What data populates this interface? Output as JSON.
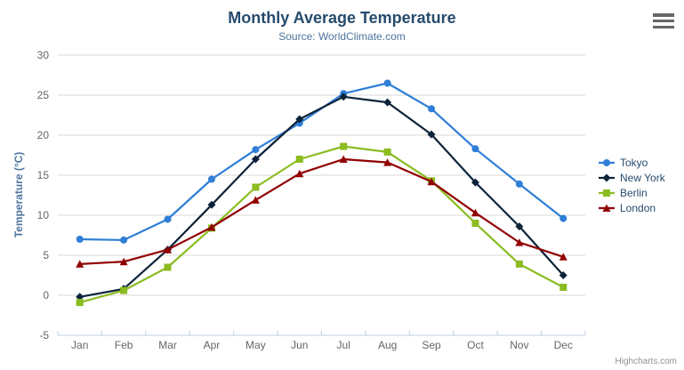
{
  "header": {
    "title": "Monthly Average Temperature",
    "subtitle": "Source: WorldClimate.com"
  },
  "credits_label": "Highcharts.com",
  "export_menu_icon": "hamburger-menu-icon",
  "chart_data": {
    "type": "line",
    "title": "Monthly Average Temperature",
    "subtitle": "Source: WorldClimate.com",
    "xlabel": "",
    "ylabel": "Temperature (°C)",
    "categories": [
      "Jan",
      "Feb",
      "Mar",
      "Apr",
      "May",
      "Jun",
      "Jul",
      "Aug",
      "Sep",
      "Oct",
      "Nov",
      "Dec"
    ],
    "ylim": [
      -5,
      30
    ],
    "yticks": [
      -5,
      0,
      5,
      10,
      15,
      20,
      25,
      30
    ],
    "grid": true,
    "legend_position": "right",
    "grid_color": "#d8d8d8",
    "axis_line_color": "#c0d0e0",
    "series": [
      {
        "name": "Tokyo",
        "color": "#2f7ed8",
        "marker": "circle",
        "values": [
          7.0,
          6.9,
          9.5,
          14.5,
          18.2,
          21.5,
          25.2,
          26.5,
          23.3,
          18.3,
          13.9,
          9.6
        ]
      },
      {
        "name": "New York",
        "color": "#0d233a",
        "marker": "diamond",
        "values": [
          -0.2,
          0.8,
          5.7,
          11.3,
          17.0,
          22.0,
          24.8,
          24.1,
          20.1,
          14.1,
          8.6,
          2.5
        ]
      },
      {
        "name": "Berlin",
        "color": "#8bbc21",
        "marker": "square",
        "values": [
          -0.9,
          0.6,
          3.5,
          8.4,
          13.5,
          17.0,
          18.6,
          17.9,
          14.3,
          9.0,
          3.9,
          1.0
        ]
      },
      {
        "name": "London",
        "color": "#910000",
        "marker": "triangle",
        "values": [
          3.9,
          4.2,
          5.7,
          8.5,
          11.9,
          15.2,
          17.0,
          16.6,
          14.2,
          10.3,
          6.6,
          4.8
        ]
      }
    ]
  }
}
